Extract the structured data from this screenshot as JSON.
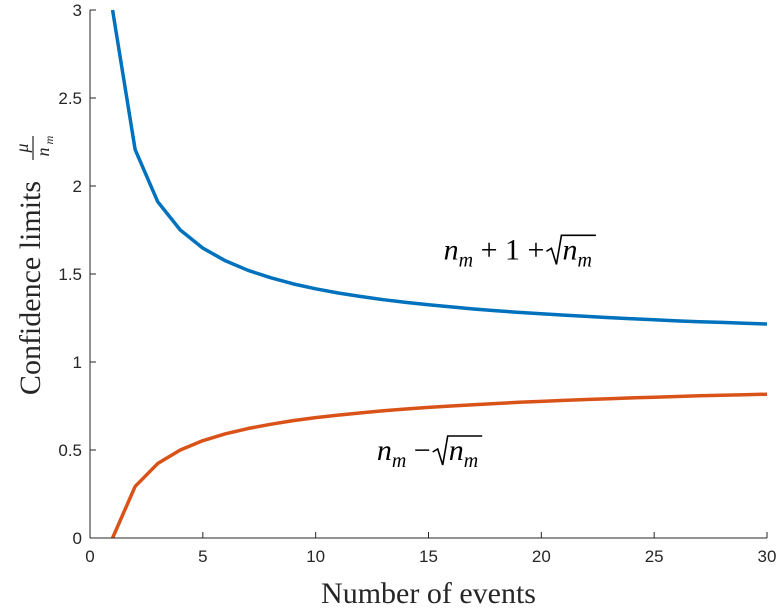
{
  "chart_data": {
    "type": "line",
    "xlabel": "Number of events",
    "ylabel": "Confidence limits",
    "ylabel_fraction": {
      "numerator": "μ",
      "denominator_base": "n",
      "denominator_sub": "m"
    },
    "xlim": [
      0,
      30
    ],
    "ylim": [
      0,
      3
    ],
    "xticks": [
      "0",
      "5",
      "10",
      "15",
      "20",
      "25",
      "30"
    ],
    "yticks": [
      "0",
      "0.5",
      "1",
      "1.5",
      "2",
      "2.5",
      "3"
    ],
    "grid": false,
    "legend": "none",
    "x": [
      1,
      2,
      3,
      4,
      5,
      6,
      7,
      8,
      9,
      10,
      11,
      12,
      13,
      14,
      15,
      16,
      17,
      18,
      19,
      20,
      21,
      22,
      23,
      24,
      25,
      26,
      27,
      28,
      29,
      30
    ],
    "series": [
      {
        "color": "#0072BD",
        "values": [
          3.0,
          2.207,
          1.911,
          1.75,
          1.647,
          1.575,
          1.521,
          1.479,
          1.444,
          1.416,
          1.392,
          1.372,
          1.354,
          1.339,
          1.325,
          1.313,
          1.301,
          1.291,
          1.282,
          1.274,
          1.266,
          1.259,
          1.252,
          1.246,
          1.24,
          1.234,
          1.229,
          1.225,
          1.22,
          1.216
        ]
      },
      {
        "color": "#D95319",
        "values": [
          0.0,
          0.293,
          0.423,
          0.5,
          0.553,
          0.592,
          0.622,
          0.646,
          0.667,
          0.684,
          0.698,
          0.711,
          0.723,
          0.733,
          0.742,
          0.75,
          0.757,
          0.764,
          0.771,
          0.776,
          0.782,
          0.787,
          0.791,
          0.796,
          0.8,
          0.804,
          0.808,
          0.811,
          0.814,
          0.817
        ]
      }
    ],
    "annotations": [
      {
        "n": "n",
        "sub": "m",
        "mid": " + 1 + ",
        "sqrt_n": "n",
        "sqrt_sub": "m",
        "x": 19.0,
        "y": 1.64
      },
      {
        "n": "n",
        "sub": "m",
        "mid": " − ",
        "sqrt_n": "n",
        "sqrt_sub": "m",
        "x": 15.0,
        "y": 0.5
      }
    ]
  }
}
